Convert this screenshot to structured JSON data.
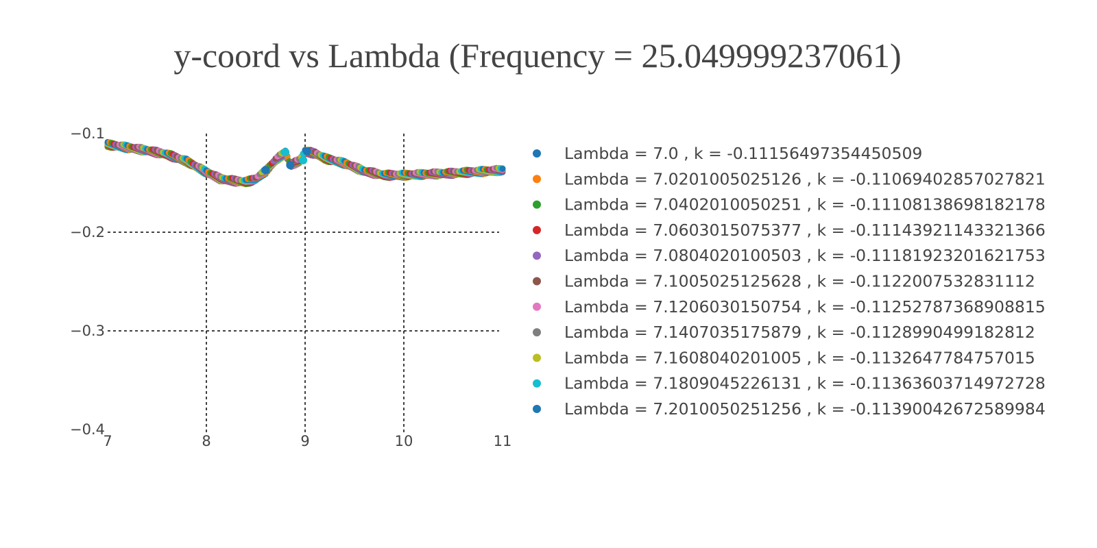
{
  "chart_data": {
    "type": "scatter",
    "title": "y-coord vs Lambda (Frequency = 25.049999237061)",
    "xlabel": "",
    "ylabel": "",
    "xlim": [
      7,
      11
    ],
    "ylim": [
      -0.4,
      -0.1
    ],
    "x_ticks": [
      "7",
      "8",
      "9",
      "10",
      "11"
    ],
    "y_ticks": [
      "−0.1",
      "−0.2",
      "−0.3",
      "−0.4"
    ],
    "grid": "dashed",
    "legend_position": "right",
    "colors": [
      "#1f77b4",
      "#ff7f0e",
      "#2ca02c",
      "#d62728",
      "#9467bd",
      "#8c564b",
      "#e377c2",
      "#7f7f7f",
      "#bcbd22",
      "#17becf"
    ],
    "series": [
      {
        "name": "Lambda = 7.0 , k = -0.11156497354450509"
      },
      {
        "name": "Lambda = 7.0201005025126 , k = -0.11069402857027821"
      },
      {
        "name": "Lambda = 7.0402010050251 , k = -0.11108138698182178"
      },
      {
        "name": "Lambda = 7.0603015075377 , k = -0.11143921143321366"
      },
      {
        "name": "Lambda = 7.0804020100503 , k = -0.11181923201621753"
      },
      {
        "name": "Lambda = 7.1005025125628 , k = -0.1122007532831112"
      },
      {
        "name": "Lambda = 7.1206030150754 , k = -0.11252787368908815"
      },
      {
        "name": "Lambda = 7.1407035175879 , k = -0.1128990499182812"
      },
      {
        "name": "Lambda = 7.1608040201005 , k = -0.1132647784757015"
      },
      {
        "name": "Lambda = 7.1809045226131 , k = -0.11363603714972728"
      },
      {
        "name": "Lambda = 7.2010050251256 , k = -0.11390042672589984"
      }
    ],
    "curve": {
      "x": [
        7.0,
        7.2,
        7.4,
        7.6,
        7.8,
        8.0,
        8.15,
        8.3,
        8.4,
        8.5,
        8.6,
        8.7,
        8.8,
        8.85,
        8.95,
        9.0,
        9.1,
        9.2,
        9.4,
        9.6,
        9.8,
        10.0,
        10.5,
        11.0
      ],
      "y": [
        -0.111,
        -0.114,
        -0.117,
        -0.121,
        -0.128,
        -0.139,
        -0.146,
        -0.148,
        -0.149,
        -0.146,
        -0.138,
        -0.127,
        -0.119,
        -0.132,
        -0.127,
        -0.118,
        -0.12,
        -0.125,
        -0.13,
        -0.138,
        -0.142,
        -0.142,
        -0.14,
        -0.137
      ]
    }
  }
}
